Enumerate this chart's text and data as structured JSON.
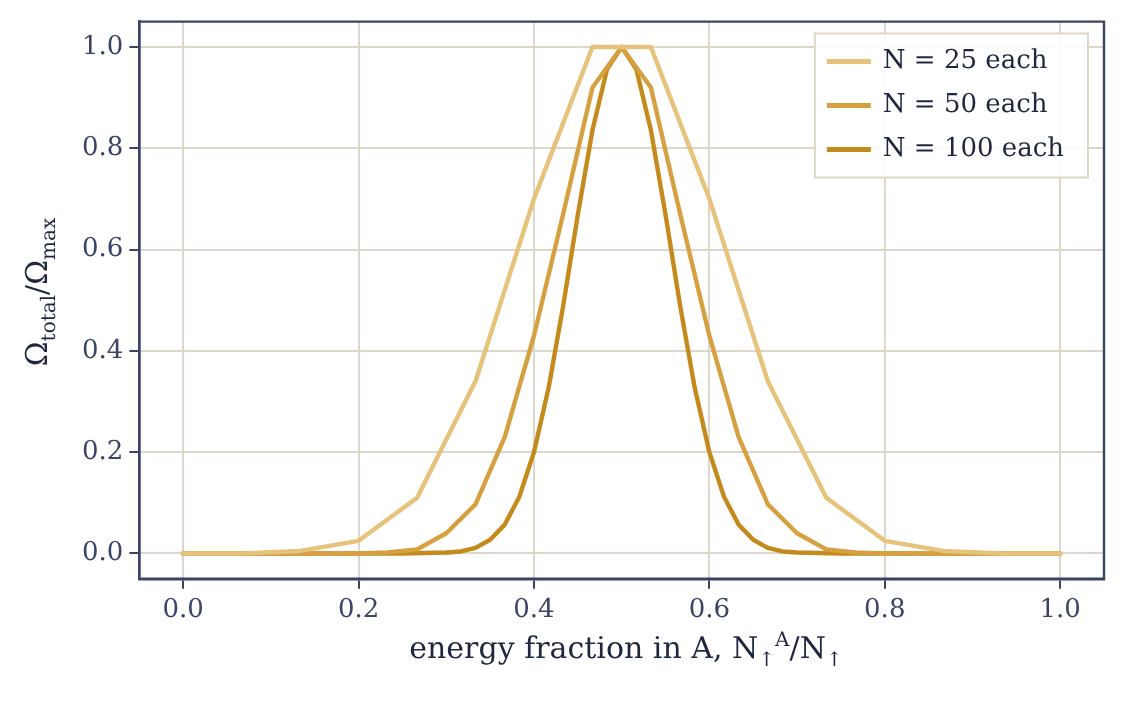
{
  "chart_data": {
    "type": "line",
    "xlabel": "energy fraction in A, N$_{↑}$$^{A}$/N$_{↑}$",
    "ylabel": "Ω$_{total}$/Ω$_{max}$",
    "xlim": [
      -0.05,
      1.05
    ],
    "xticks": [
      {
        "value": 0,
        "label": "0.0"
      },
      0.2,
      0.4,
      0.6,
      0.8,
      {
        "value": 1,
        "label": "1.0"
      }
    ],
    "ylim": [
      -0.05,
      1.05
    ],
    "yticks": [
      {
        "value": 0,
        "label": "0.0"
      },
      0.2,
      0.4,
      0.6,
      0.8,
      {
        "value": 1,
        "label": "1.0"
      }
    ],
    "grid": true,
    "legend": "top right",
    "marker": "none",
    "line_style": "solid",
    "series": [
      {
        "name": "N = 25 each",
        "color": "#e6c27a",
        "x": [
          0,
          0.0667,
          0.1333,
          0.2,
          0.2667,
          0.3333,
          0.4,
          0.4667,
          0.5333,
          0.6,
          0.6667,
          0.7333,
          0.8,
          0.8667,
          0.9333,
          1
        ],
        "values": [
          0,
          0,
          0.005,
          0.025,
          0.11,
          0.34,
          0.7,
          1,
          1,
          0.7,
          0.34,
          0.11,
          0.025,
          0.005,
          0,
          0
        ]
      },
      {
        "name": "N = 50 each",
        "color": "#d6a040",
        "x": [
          0,
          0.0333,
          0.0667,
          0.1,
          0.1333,
          0.1667,
          0.2,
          0.2333,
          0.2667,
          0.3,
          0.3333,
          0.3667,
          0.4,
          0.4333,
          0.4667,
          0.5,
          0.5333,
          0.5667,
          0.6,
          0.6333,
          0.6667,
          0.7,
          0.7333,
          0.7667,
          0.8,
          0.8333,
          0.8667,
          0.9,
          0.9333,
          0.9667,
          1
        ],
        "values": [
          0,
          0,
          0,
          0,
          0,
          0,
          0,
          0.002,
          0.008,
          0.04,
          0.097,
          0.23,
          0.43,
          0.67,
          0.92,
          1,
          0.92,
          0.67,
          0.43,
          0.23,
          0.097,
          0.04,
          0.008,
          0.002,
          0,
          0,
          0,
          0,
          0,
          0,
          0
        ]
      },
      {
        "name": "N = 100 each",
        "color": "#c58a1c",
        "x": [
          0,
          0.05,
          0.1,
          0.15,
          0.2,
          0.25,
          0.3,
          0.3167,
          0.3333,
          0.35,
          0.3667,
          0.3833,
          0.4,
          0.4167,
          0.4333,
          0.45,
          0.4667,
          0.4833,
          0.5,
          0.5167,
          0.5333,
          0.55,
          0.5667,
          0.5833,
          0.6,
          0.6167,
          0.6333,
          0.65,
          0.6667,
          0.6833,
          0.7,
          0.75,
          0.8,
          0.85,
          0.9,
          0.95,
          1
        ],
        "values": [
          0,
          0,
          0,
          0,
          0,
          0,
          0.002,
          0.004,
          0.011,
          0.027,
          0.057,
          0.112,
          0.2,
          0.327,
          0.489,
          0.669,
          0.836,
          0.956,
          1,
          0.956,
          0.836,
          0.669,
          0.489,
          0.327,
          0.2,
          0.112,
          0.057,
          0.027,
          0.011,
          0.004,
          0.002,
          0,
          0,
          0,
          0,
          0,
          0
        ]
      }
    ]
  }
}
